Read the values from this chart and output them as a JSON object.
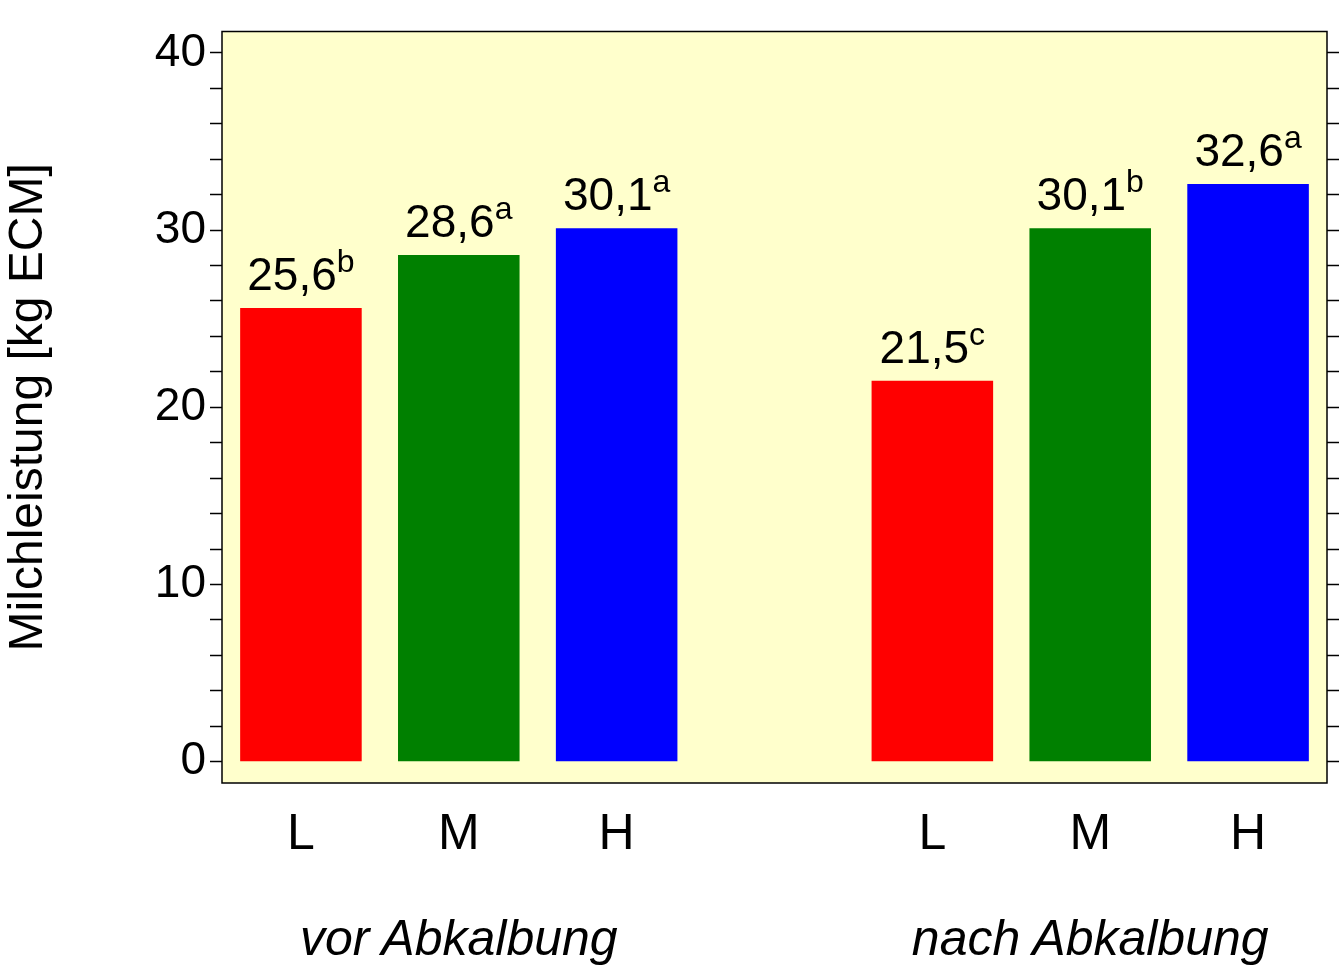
{
  "chart_data": {
    "type": "bar",
    "ylabel": "Milchleistung [kg ECM]",
    "categories": [
      "L",
      "M",
      "H",
      null,
      "L",
      "M",
      "H"
    ],
    "values": [
      25.6,
      28.6,
      30.1,
      null,
      21.5,
      30.1,
      32.6
    ],
    "colors": [
      "#ff0000",
      "#008000",
      "#0000ff",
      null,
      "#ff0000",
      "#008000",
      "#0000ff"
    ],
    "value_labels": [
      "25,6$^{b}$",
      "28,6$^{a}$",
      "30,1$^{a}$",
      null,
      "21,5$^{c}$",
      "30,1$^{b}$",
      "32,6$^{a}$"
    ],
    "annotations": [
      "vor Abkalbung",
      "nach Abkalbung"
    ],
    "ylim": [
      -1.2,
      41.2
    ],
    "yticks": [
      0,
      {
        "value": 2,
        "label": null
      },
      {
        "value": 4,
        "label": null
      },
      {
        "value": 6,
        "label": null
      },
      {
        "value": 8,
        "label": null
      },
      10,
      {
        "value": 12,
        "label": null
      },
      {
        "value": 14,
        "label": null
      },
      {
        "value": 16,
        "label": null
      },
      {
        "value": 18,
        "label": null
      },
      20,
      {
        "value": 22,
        "label": null
      },
      {
        "value": 24,
        "label": null
      },
      {
        "value": 26,
        "label": null
      },
      {
        "value": 28,
        "label": null
      },
      30,
      {
        "value": 32,
        "label": null
      },
      {
        "value": 34,
        "label": null
      },
      {
        "value": 36,
        "label": null
      },
      {
        "value": 38,
        "label": null
      },
      40
    ],
    "grid": false,
    "legend": false
  }
}
